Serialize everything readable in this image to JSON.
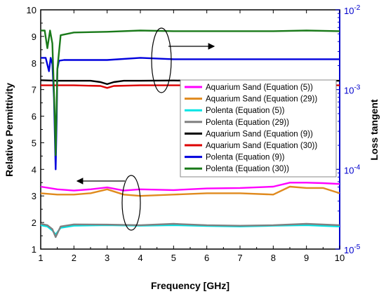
{
  "chart_data": {
    "type": "line",
    "xlabel": "Frequency [GHz]",
    "ylabel_left": "Relative Permittivity",
    "ylabel_right": "Loss tangent",
    "xlim": [
      1,
      10
    ],
    "ylim_left": [
      1,
      10
    ],
    "ylim_right_log": [
      1e-05,
      0.01
    ],
    "x_ticks": [
      "1",
      "2",
      "3",
      "4",
      "5",
      "6",
      "7",
      "8",
      "9",
      "10"
    ],
    "y_left_ticks": [
      "1",
      "2",
      "3",
      "4",
      "5",
      "6",
      "7",
      "8",
      "9",
      "10"
    ],
    "y_right_ticks": [
      {
        "base": "10",
        "exp": "-5"
      },
      {
        "base": "10",
        "exp": "-4"
      },
      {
        "base": "10",
        "exp": "-3"
      },
      {
        "base": "10",
        "exp": "-2"
      }
    ],
    "right_axis_color": "#0000cc",
    "grid": false,
    "legend_position": "right",
    "series": [
      {
        "name": "Aquarium Sand (Equation (5))",
        "axis": "left",
        "color": "#ff00ff",
        "x": [
          1,
          1.5,
          2,
          2.5,
          3,
          3.5,
          4,
          5,
          6,
          7,
          8,
          8.5,
          9,
          9.5,
          10
        ],
        "y": [
          3.35,
          3.25,
          3.2,
          3.25,
          3.32,
          3.2,
          3.25,
          3.22,
          3.28,
          3.3,
          3.35,
          3.5,
          3.5,
          3.48,
          3.45
        ]
      },
      {
        "name": "Aquarium Sand (Equation (29))",
        "axis": "left",
        "color": "#e08a1e",
        "x": [
          1,
          1.5,
          2,
          2.5,
          3,
          3.5,
          4,
          5,
          6,
          7,
          8,
          8.5,
          9,
          9.5,
          10
        ],
        "y": [
          3.1,
          3.05,
          3.05,
          3.1,
          3.25,
          3.05,
          3.0,
          3.05,
          3.1,
          3.1,
          3.05,
          3.35,
          3.3,
          3.3,
          3.1
        ]
      },
      {
        "name": "Polenta (Equation (5))",
        "axis": "left",
        "color": "#00e5e5",
        "x": [
          1,
          1.2,
          1.35,
          1.45,
          1.6,
          2,
          3,
          4,
          5,
          6,
          7,
          8,
          9,
          10
        ],
        "y": [
          1.9,
          1.85,
          1.7,
          1.55,
          1.8,
          1.88,
          1.9,
          1.88,
          1.9,
          1.87,
          1.85,
          1.88,
          1.9,
          1.85
        ]
      },
      {
        "name": "Polenta (Equation (29))",
        "axis": "left",
        "color": "#808080",
        "x": [
          1,
          1.2,
          1.35,
          1.45,
          1.6,
          2,
          3,
          4,
          5,
          6,
          7,
          8,
          9,
          10
        ],
        "y": [
          1.95,
          1.9,
          1.75,
          1.45,
          1.85,
          1.93,
          1.92,
          1.9,
          1.95,
          1.9,
          1.88,
          1.9,
          1.95,
          1.9
        ]
      },
      {
        "name": "Aquarium Sand (Equation (9))",
        "axis": "right",
        "color": "#000000",
        "x": [
          1,
          1.5,
          2,
          2.5,
          2.8,
          3,
          3.2,
          3.5,
          4,
          5,
          6,
          7,
          8,
          9,
          10
        ],
        "y": [
          0.00131,
          0.00129,
          0.00129,
          0.00129,
          0.00124,
          0.00117,
          0.00124,
          0.00129,
          0.00129,
          0.0013,
          0.00129,
          0.00129,
          0.0013,
          0.0013,
          0.00129
        ]
      },
      {
        "name": "Aquarium Sand (Equation (30))",
        "axis": "right",
        "color": "#dd0000",
        "x": [
          1,
          2,
          2.8,
          3,
          3.2,
          4,
          5,
          6,
          7,
          8,
          9,
          10
        ],
        "y": [
          0.00113,
          0.00113,
          0.00111,
          0.00105,
          0.00111,
          0.00113,
          0.00113,
          0.00113,
          0.00113,
          0.00113,
          0.00113,
          0.00113
        ]
      },
      {
        "name": "Polenta (Equation (9))",
        "axis": "right",
        "color": "#0000dd",
        "x": [
          1,
          1.15,
          1.25,
          1.3,
          1.35,
          1.4,
          1.45,
          1.48,
          1.5,
          1.55,
          1.7,
          2,
          3,
          4,
          5,
          6,
          7,
          8,
          9,
          10
        ],
        "y": [
          0.0025,
          0.0025,
          0.0017,
          0.0025,
          0.0021,
          0.0008,
          0.0001,
          0.0004,
          0.0018,
          0.0023,
          0.00235,
          0.00235,
          0.00235,
          0.0025,
          0.0024,
          0.0024,
          0.0024,
          0.0024,
          0.0024,
          0.0024
        ]
      },
      {
        "name": "Polenta (Equation (30))",
        "axis": "right",
        "color": "#1a7a1a",
        "x": [
          1,
          1.12,
          1.2,
          1.28,
          1.35,
          1.42,
          1.45,
          1.5,
          1.6,
          2,
          3,
          4,
          5,
          6,
          7,
          8,
          9,
          10
        ],
        "y": [
          0.0055,
          0.0055,
          0.0033,
          0.0055,
          0.0038,
          0.0005,
          0.00015,
          0.0018,
          0.0048,
          0.0052,
          0.0053,
          0.0055,
          0.0054,
          0.0054,
          0.0054,
          0.0054,
          0.0055,
          0.0054
        ]
      }
    ]
  }
}
